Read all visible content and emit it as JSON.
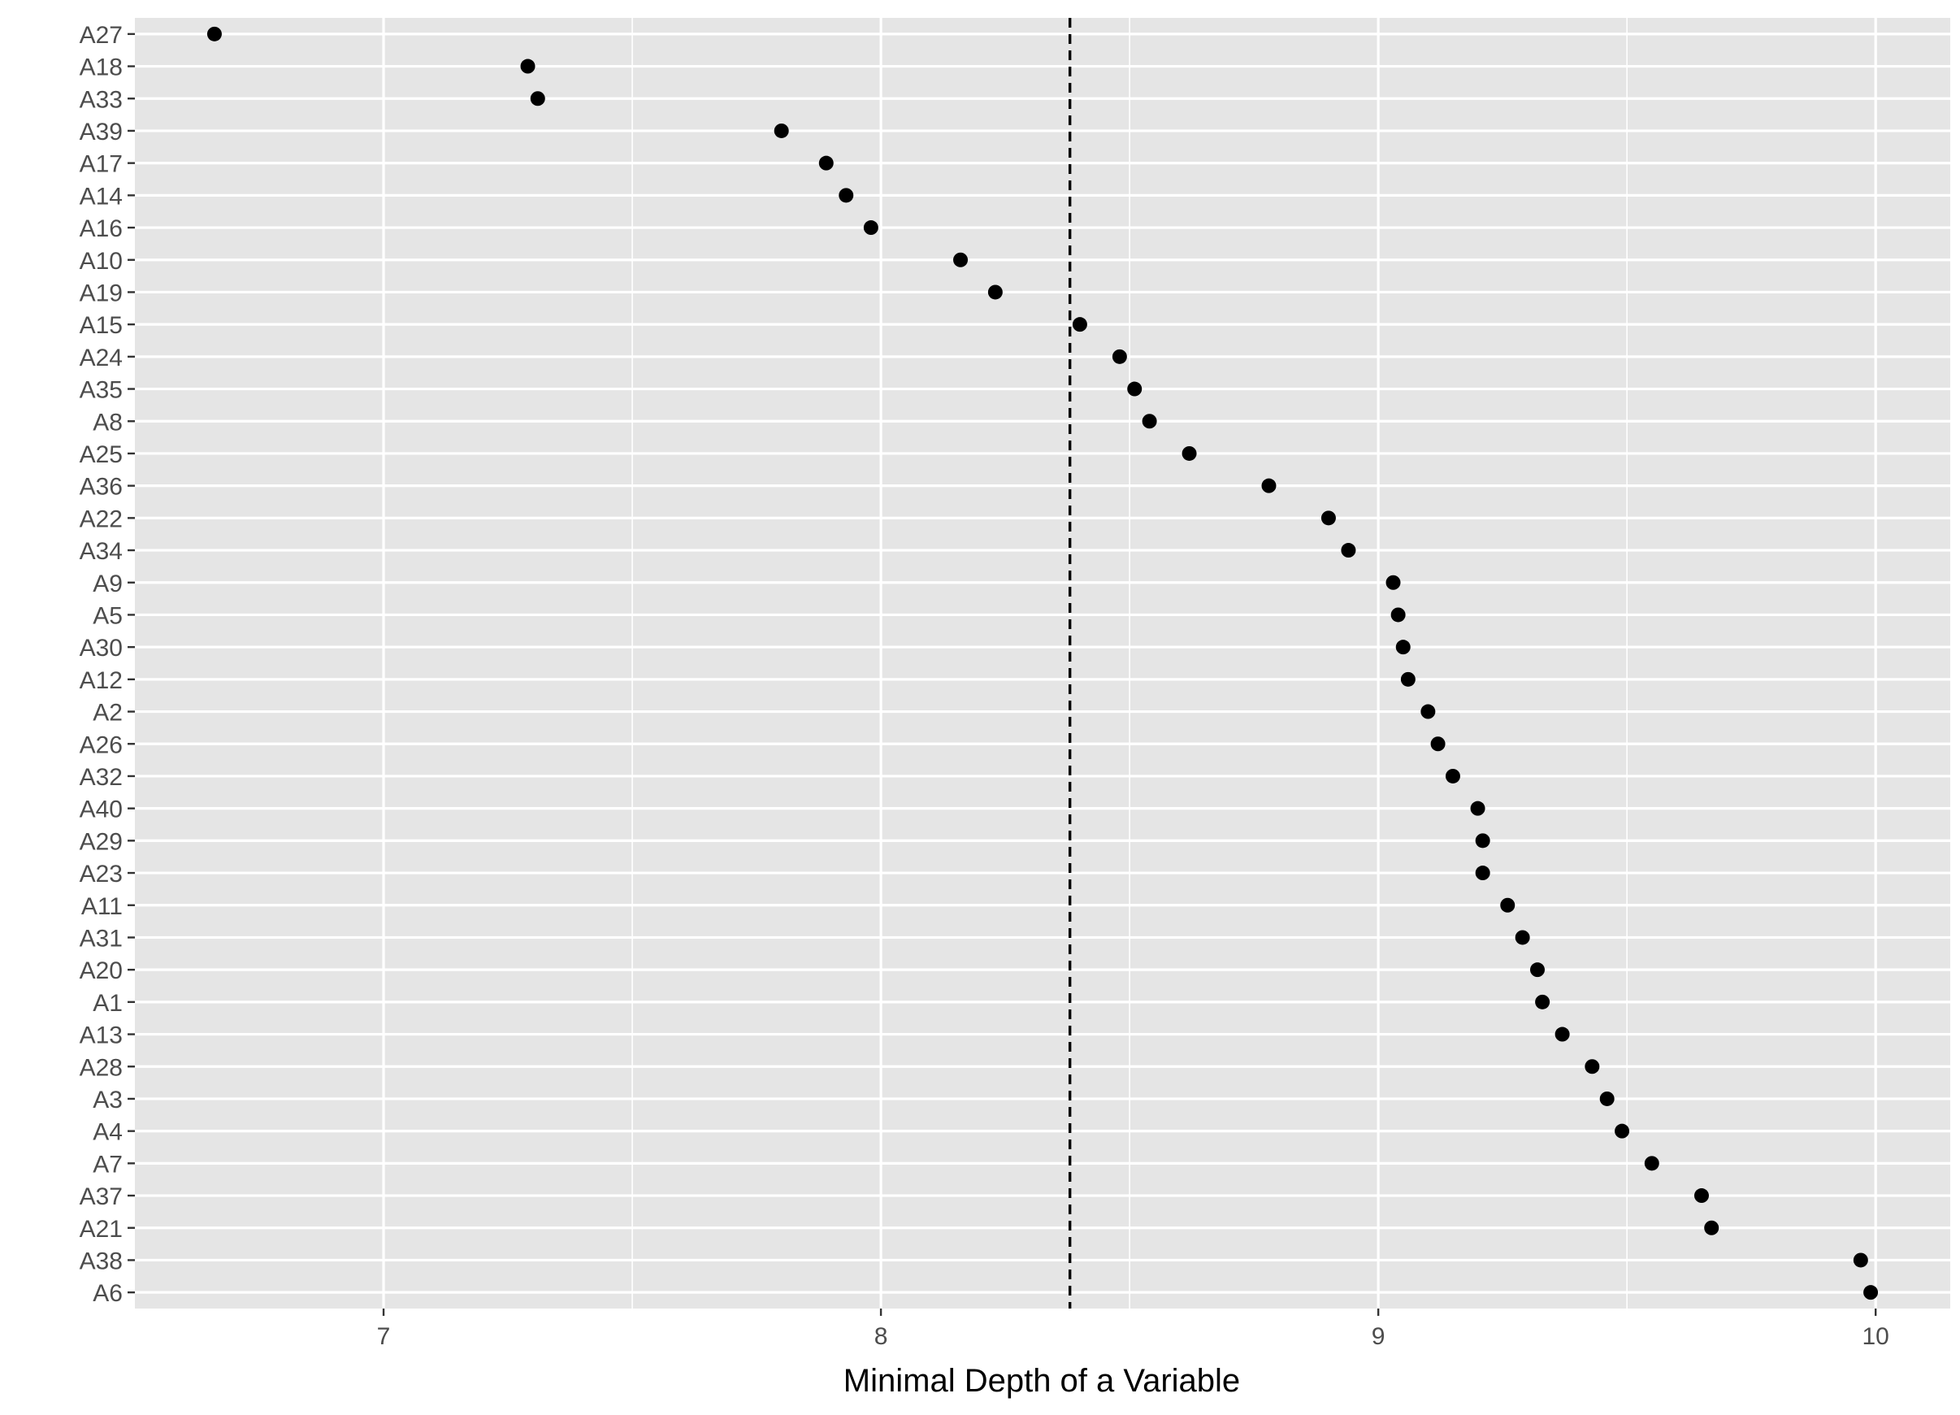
{
  "chart_data": {
    "type": "scatter",
    "title": "",
    "xlabel": "Minimal Depth of a Variable",
    "ylabel": "",
    "xlim": [
      6.5,
      10.15
    ],
    "x_ticks": [
      7,
      8,
      9,
      10
    ],
    "x_tick_labels": [
      "7",
      "8",
      "9",
      "10"
    ],
    "threshold_line": {
      "x": 8.38,
      "style": "dashed"
    },
    "grid": true,
    "categories": [
      "A27",
      "A18",
      "A33",
      "A39",
      "A17",
      "A14",
      "A16",
      "A10",
      "A19",
      "A15",
      "A24",
      "A35",
      "A8",
      "A25",
      "A36",
      "A22",
      "A34",
      "A9",
      "A5",
      "A30",
      "A12",
      "A2",
      "A26",
      "A32",
      "A40",
      "A29",
      "A23",
      "A11",
      "A31",
      "A20",
      "A1",
      "A13",
      "A28",
      "A3",
      "A4",
      "A7",
      "A37",
      "A21",
      "A38",
      "A6"
    ],
    "values": [
      6.66,
      7.29,
      7.31,
      7.8,
      7.89,
      7.93,
      7.98,
      8.16,
      8.23,
      8.4,
      8.48,
      8.51,
      8.54,
      8.62,
      8.78,
      8.9,
      8.94,
      9.03,
      9.04,
      9.05,
      9.06,
      9.1,
      9.12,
      9.15,
      9.2,
      9.21,
      9.21,
      9.26,
      9.29,
      9.32,
      9.33,
      9.37,
      9.43,
      9.46,
      9.49,
      9.55,
      9.65,
      9.67,
      9.97,
      9.99
    ],
    "colors": {
      "panel": "#e5e5e5",
      "grid": "#ffffff",
      "point": "#000000",
      "line": "#000000"
    }
  }
}
